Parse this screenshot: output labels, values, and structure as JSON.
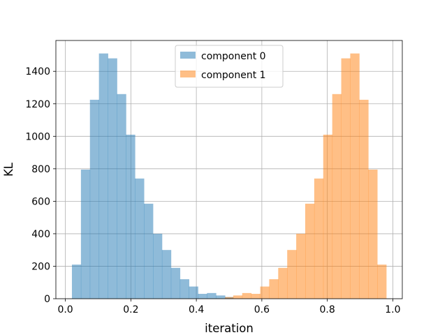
{
  "chart_data": {
    "type": "bar",
    "title": "",
    "xlabel": "iteration",
    "ylabel": "KL",
    "xlim": [
      -0.029,
      1.029
    ],
    "ylim": [
      0,
      1590
    ],
    "xticks": [
      0.0,
      0.2,
      0.4,
      0.6,
      0.8,
      1.0
    ],
    "xtick_labels": [
      "0.0",
      "0.2",
      "0.4",
      "0.6",
      "0.8",
      "1.0"
    ],
    "yticks": [
      0,
      200,
      400,
      600,
      800,
      1000,
      1200,
      1400
    ],
    "ytick_labels": [
      "0",
      "200",
      "400",
      "600",
      "800",
      "1000",
      "1200",
      "1400"
    ],
    "grid": true,
    "legend_position": "upper center",
    "bin_edges": [
      0.02,
      0.0475,
      0.075,
      0.1025,
      0.13,
      0.1575,
      0.185,
      0.2125,
      0.24,
      0.2675,
      0.295,
      0.3225,
      0.35,
      0.3775,
      0.405,
      0.4325,
      0.46,
      0.4875,
      0.5125,
      0.54,
      0.5675,
      0.595,
      0.6225,
      0.65,
      0.6775,
      0.705,
      0.7325,
      0.76,
      0.7875,
      0.815,
      0.8425,
      0.87,
      0.8975,
      0.925,
      0.9525,
      0.98
    ],
    "series": [
      {
        "name": "component 0",
        "color": "#1f77b4",
        "opacity": 0.5,
        "values": [
          210,
          795,
          1225,
          1510,
          1480,
          1260,
          1010,
          740,
          585,
          400,
          300,
          190,
          120,
          75,
          30,
          35,
          20,
          10,
          0,
          0,
          0,
          0,
          0,
          0,
          0,
          0,
          0,
          0,
          0,
          0,
          0,
          0,
          0,
          0,
          0
        ]
      },
      {
        "name": "component 1",
        "color": "#ff7f0e",
        "opacity": 0.5,
        "values": [
          0,
          0,
          0,
          0,
          0,
          0,
          0,
          0,
          0,
          0,
          0,
          0,
          0,
          0,
          0,
          0,
          0,
          10,
          20,
          35,
          30,
          75,
          120,
          190,
          300,
          400,
          585,
          740,
          1010,
          1260,
          1480,
          1510,
          1225,
          795,
          210
        ]
      }
    ]
  }
}
